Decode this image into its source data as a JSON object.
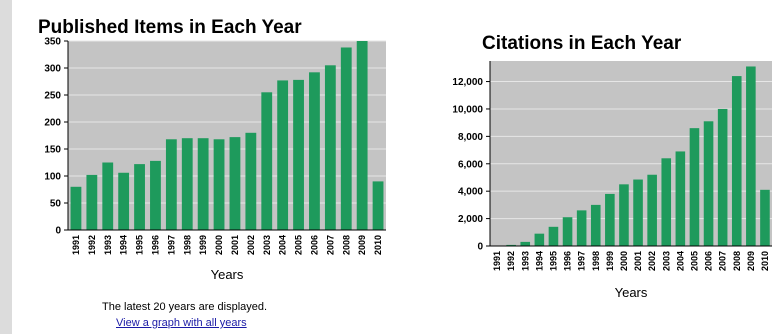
{
  "chart_data": [
    {
      "type": "bar",
      "title": "Published Items in Each Year",
      "xlabel": "Years",
      "ylabel": "",
      "categories": [
        "1991",
        "1992",
        "1993",
        "1994",
        "1995",
        "1996",
        "1997",
        "1998",
        "1999",
        "2000",
        "2001",
        "2002",
        "2003",
        "2004",
        "2005",
        "2006",
        "2007",
        "2008",
        "2009",
        "2010"
      ],
      "values": [
        80,
        102,
        125,
        106,
        122,
        128,
        168,
        170,
        170,
        168,
        172,
        180,
        255,
        277,
        278,
        292,
        305,
        338,
        350,
        90
      ],
      "ylim": [
        0,
        350
      ],
      "yticks": [
        0,
        50,
        100,
        150,
        200,
        250,
        300,
        350
      ],
      "ytick_labels": [
        "0",
        "50",
        "100",
        "150",
        "200",
        "250",
        "300",
        "350"
      ],
      "grid": true,
      "bar_color": "#1e9a5c",
      "plot_bg": "#c4c4c4"
    },
    {
      "type": "bar",
      "title": "Citations in Each Year",
      "xlabel": "Years",
      "ylabel": "",
      "categories": [
        "1991",
        "1992",
        "1993",
        "1994",
        "1995",
        "1996",
        "1997",
        "1998",
        "1999",
        "2000",
        "2001",
        "2002",
        "2003",
        "2004",
        "2005",
        "2006",
        "2007",
        "2008",
        "2009",
        "2010"
      ],
      "values": [
        0,
        80,
        300,
        900,
        1400,
        2100,
        2600,
        3000,
        3800,
        4500,
        4850,
        5200,
        6400,
        6900,
        8600,
        9100,
        10000,
        12400,
        13100,
        4100
      ],
      "ylim": [
        0,
        13500
      ],
      "yticks": [
        0,
        2000,
        4000,
        6000,
        8000,
        10000,
        12000
      ],
      "ytick_labels": [
        "0",
        "2,000",
        "4,000",
        "6,000",
        "8,000",
        "10,000",
        "12,000"
      ],
      "grid": true,
      "bar_color": "#1e9a5c",
      "plot_bg": "#c4c4c4"
    }
  ],
  "footer": {
    "note": "The latest 20 years are displayed.",
    "link": "View a graph with all years"
  }
}
